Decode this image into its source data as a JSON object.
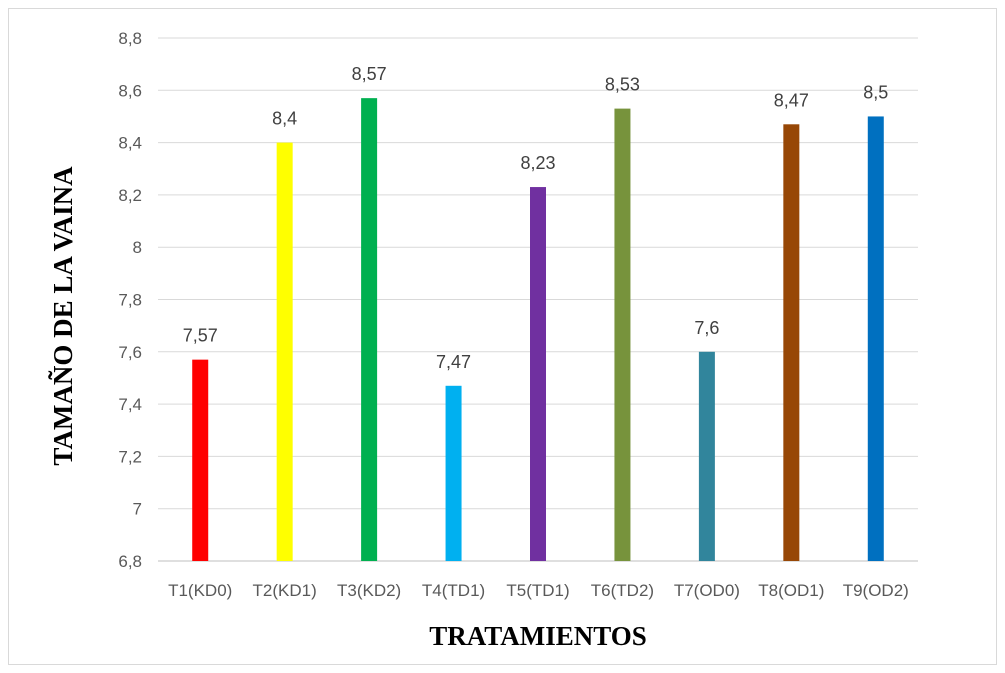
{
  "chart_data": {
    "type": "bar",
    "title": "",
    "xlabel": "TRATAMIENTOS",
    "ylabel": "TAMAÑO DE LA VAINA",
    "categories": [
      "T1(KD0)",
      "T2(KD1)",
      "T3(KD2)",
      "T4(TD1)",
      "T5(TD1)",
      "T6(TD2)",
      "T7(OD0)",
      "T8(OD1)",
      "T9(OD2)"
    ],
    "values": [
      7.57,
      8.4,
      8.57,
      7.47,
      8.23,
      8.53,
      7.6,
      8.47,
      8.5
    ],
    "data_labels": [
      "7,57",
      "8,4",
      "8,57",
      "7,47",
      "8,23",
      "8,53",
      "7,6",
      "8,47",
      "8,5"
    ],
    "colors": [
      "#ff0000",
      "#ffff00",
      "#00b050",
      "#00b0f0",
      "#7030a0",
      "#77933c",
      "#31859c",
      "#974706",
      "#0070c0"
    ],
    "ylim": [
      6.8,
      8.8
    ],
    "yticks": [
      6.8,
      7,
      7.2,
      7.4,
      7.6,
      7.8,
      8,
      8.2,
      8.4,
      8.6,
      8.8
    ],
    "ytick_labels": [
      "6,8",
      "7",
      "7,2",
      "7,4",
      "7,6",
      "7,8",
      "8",
      "8,2",
      "8,4",
      "8,6",
      "8,8"
    ],
    "grid": true,
    "legend": "none"
  }
}
